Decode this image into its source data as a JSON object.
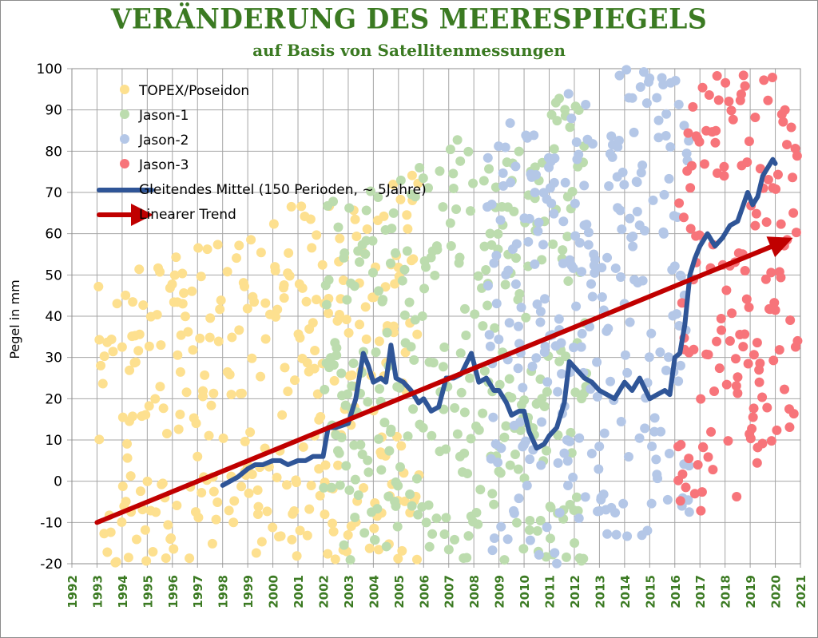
{
  "chart_data": {
    "type": "scatter",
    "title": "VERÄNDERUNG DES MEERESPIEGELS",
    "subtitle": "auf Basis von Satellitenmessungen",
    "xlabel": "",
    "ylabel": "Pegel in mm",
    "xlim": [
      1992,
      2021
    ],
    "ylim": [
      -20,
      100
    ],
    "x_ticks": [
      "1992",
      "1993",
      "1994",
      "1995",
      "1996",
      "1997",
      "1998",
      "1999",
      "2000",
      "2001",
      "2002",
      "2003",
      "2004",
      "2005",
      "2006",
      "2007",
      "2008",
      "2009",
      "2010",
      "2011",
      "2012",
      "2013",
      "2014",
      "2015",
      "2016",
      "2017",
      "2018",
      "2019",
      "2020",
      "2021"
    ],
    "y_ticks": [
      -20,
      -10,
      0,
      10,
      20,
      30,
      40,
      50,
      60,
      70,
      80,
      90,
      100
    ],
    "grid": true,
    "legend_position": "top-left",
    "series": [
      {
        "name": "TOPEX/Poseidon",
        "kind": "scatter",
        "color": "#fde08f",
        "x_range": [
          1993.0,
          2005.8
        ]
      },
      {
        "name": "Jason-1",
        "kind": "scatter",
        "color": "#bcdcae",
        "x_range": [
          2002.0,
          2012.5
        ]
      },
      {
        "name": "Jason-2",
        "kind": "scatter",
        "color": "#b4c7e7",
        "x_range": [
          2008.5,
          2016.6
        ]
      },
      {
        "name": "Jason-3",
        "kind": "scatter",
        "color": "#f7747a",
        "x_range": [
          2016.1,
          2020.9
        ]
      },
      {
        "name": "Gleitendes Mittel (150 Perioden, ~ 5Jahre)",
        "kind": "line",
        "color": "#2f5597",
        "x": [
          1998.0,
          1998.3,
          1998.6,
          1999.0,
          1999.3,
          1999.6,
          2000.0,
          2000.3,
          2000.6,
          2001.0,
          2001.3,
          2001.6,
          2002.0,
          2002.2,
          2002.5,
          2003.0,
          2003.3,
          2003.6,
          2003.8,
          2004.0,
          2004.3,
          2004.5,
          2004.7,
          2004.9,
          2005.2,
          2005.5,
          2005.8,
          2006.0,
          2006.3,
          2006.6,
          2006.9,
          2007.2,
          2007.5,
          2007.9,
          2008.2,
          2008.5,
          2008.8,
          2009.0,
          2009.3,
          2009.5,
          2009.8,
          2010.0,
          2010.2,
          2010.5,
          2010.8,
          2011.0,
          2011.3,
          2011.6,
          2011.8,
          2012.1,
          2012.4,
          2012.7,
          2013.0,
          2013.3,
          2013.6,
          2014.0,
          2014.3,
          2014.6,
          2015.0,
          2015.3,
          2015.6,
          2015.8,
          2016.0,
          2016.2,
          2016.4,
          2016.6,
          2016.8,
          2017.0,
          2017.3,
          2017.6,
          2017.9,
          2018.2,
          2018.5,
          2018.9,
          2019.1,
          2019.3,
          2019.5,
          2019.7,
          2019.9,
          2020.0
        ],
        "values": [
          -1,
          0,
          1,
          3,
          4,
          4,
          5,
          5,
          4,
          5,
          5,
          6,
          6,
          13,
          13,
          14,
          20,
          31,
          28,
          24,
          25,
          24,
          33,
          25,
          24,
          22,
          19,
          20,
          17,
          18,
          25,
          25,
          26,
          31,
          24,
          25,
          22,
          22,
          19,
          16,
          17,
          17,
          12,
          8,
          9,
          11,
          13,
          19,
          29,
          27,
          25,
          24,
          22,
          21,
          20,
          24,
          22,
          25,
          20,
          21,
          22,
          21,
          30,
          31,
          38,
          50,
          54,
          57,
          60,
          57,
          59,
          62,
          63,
          70,
          67,
          69,
          74,
          76,
          78,
          77
        ]
      },
      {
        "name": "Linearer Trend",
        "kind": "arrow",
        "color": "#c00000",
        "x": [
          1993.0,
          2020.7
        ],
        "values": [
          -10,
          59
        ]
      }
    ]
  }
}
